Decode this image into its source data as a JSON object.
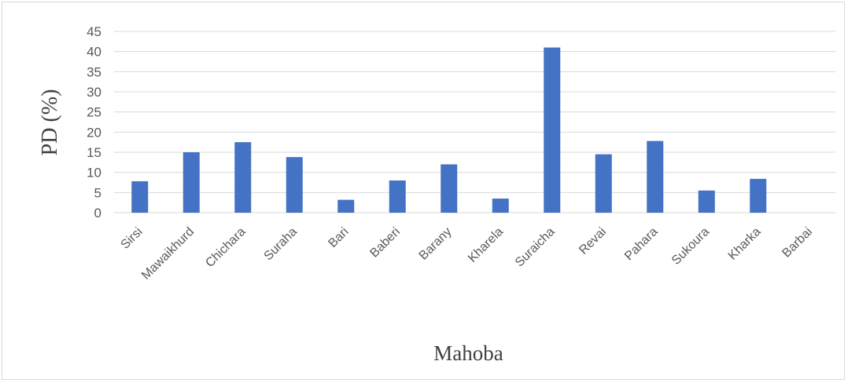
{
  "chart_data": {
    "type": "bar",
    "title": "",
    "xlabel": "Mahoba",
    "ylabel": "PD (%)",
    "ylim": [
      0,
      45
    ],
    "yticks": [
      0,
      5,
      10,
      15,
      20,
      25,
      30,
      35,
      40,
      45
    ],
    "grid": true,
    "legend": "none",
    "bar_color": "#4472C4",
    "categories": [
      "Sirsi",
      "Mawaikhurd",
      "Chichara",
      "Suraha",
      "Bari",
      "Baberi",
      "Barany",
      "Kharela",
      "Suraicha",
      "Revai",
      "Pahara",
      "Sukoura",
      "Kharka",
      "Barbai"
    ],
    "values": [
      7.8,
      15.0,
      17.5,
      13.8,
      3.2,
      8.0,
      12.0,
      3.5,
      41.0,
      14.5,
      17.8,
      5.5,
      8.4,
      0
    ]
  }
}
